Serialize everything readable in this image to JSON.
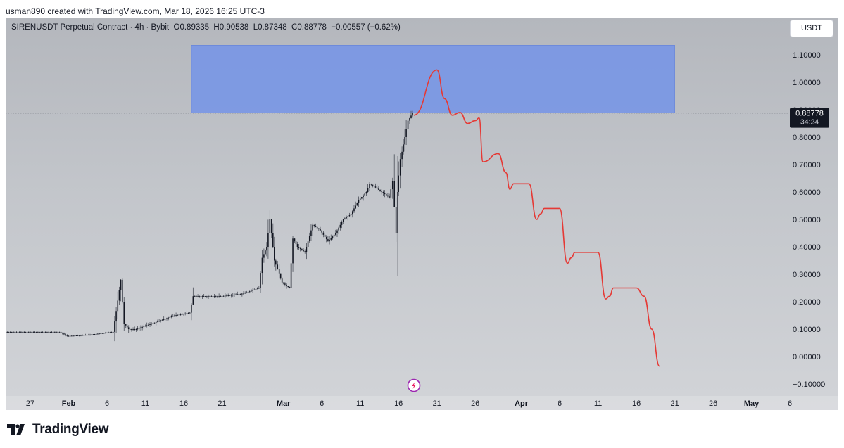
{
  "header": {
    "created_line": "usman890 created with TradingView.com, Mar 18, 2026 16:25 UTC-3"
  },
  "legend": {
    "symbol_line": "SIRENUSDT Perpetual Contract · 4h · Bybit",
    "open": "O0.89335",
    "high": "H0.90538",
    "low": "L0.87348",
    "close": "C0.88778",
    "change": "−0.00557 (−0.62%)"
  },
  "currency_button": "USDT",
  "last_price": {
    "value": "0.88778",
    "countdown": "34:24"
  },
  "footer": {
    "brand": "TradingView"
  },
  "colors": {
    "candles": "#131722",
    "zone": "#7896e6",
    "projection": "#e53935",
    "background_top": "#b4b7bd",
    "background_bottom": "#d2d4d8"
  },
  "event_icon": "lightning-bolt-icon",
  "chart_data": {
    "type": "line",
    "ylim": [
      -0.13,
      1.22
    ],
    "y_ticks": [
      1.1,
      1.0,
      0.9,
      0.8,
      0.7,
      0.6,
      0.5,
      0.4,
      0.3,
      0.2,
      0.1,
      0.0,
      -0.1
    ],
    "y_tick_labels": [
      "1.10000",
      "1.00000",
      "0.90000",
      "0.80000",
      "0.70000",
      "0.60000",
      "0.50000",
      "0.40000",
      "0.30000",
      "0.20000",
      "0.10000",
      "0.00000",
      "−0.10000"
    ],
    "x_ticks": [
      {
        "date": "2026-01-27",
        "label": "27",
        "bold": false
      },
      {
        "date": "2026-02-01",
        "label": "Feb",
        "bold": true
      },
      {
        "date": "2026-02-06",
        "label": "6",
        "bold": false
      },
      {
        "date": "2026-02-11",
        "label": "11",
        "bold": false
      },
      {
        "date": "2026-02-16",
        "label": "16",
        "bold": false
      },
      {
        "date": "2026-02-21",
        "label": "21",
        "bold": false
      },
      {
        "date": "2026-03-01",
        "label": "Mar",
        "bold": true
      },
      {
        "date": "2026-03-06",
        "label": "6",
        "bold": false
      },
      {
        "date": "2026-03-11",
        "label": "11",
        "bold": false
      },
      {
        "date": "2026-03-16",
        "label": "16",
        "bold": false
      },
      {
        "date": "2026-03-21",
        "label": "21",
        "bold": false
      },
      {
        "date": "2026-03-26",
        "label": "26",
        "bold": false
      },
      {
        "date": "2026-04-01",
        "label": "Apr",
        "bold": true
      },
      {
        "date": "2026-04-06",
        "label": "6",
        "bold": false
      },
      {
        "date": "2026-04-11",
        "label": "11",
        "bold": false
      },
      {
        "date": "2026-04-16",
        "label": "16",
        "bold": false
      },
      {
        "date": "2026-04-21",
        "label": "21",
        "bold": false
      },
      {
        "date": "2026-04-26",
        "label": "26",
        "bold": false
      },
      {
        "date": "2026-05-01",
        "label": "May",
        "bold": true
      },
      {
        "date": "2026-05-06",
        "label": "6",
        "bold": false
      }
    ],
    "series": [
      {
        "kind": "price",
        "x": [
          "2026-01-24",
          "2026-01-28",
          "2026-01-31",
          "2026-02-01",
          "2026-02-04",
          "2026-02-07",
          "2026-02-08",
          "2026-02-08",
          "2026-02-09",
          "2026-02-10",
          "2026-02-11",
          "2026-02-13",
          "2026-02-15",
          "2026-02-17",
          "2026-02-17",
          "2026-02-20",
          "2026-02-21",
          "2026-02-24",
          "2026-02-26",
          "2026-02-26",
          "2026-02-27",
          "2026-02-27",
          "2026-02-28",
          "2026-02-28",
          "2026-03-01",
          "2026-03-02",
          "2026-03-02",
          "2026-03-03",
          "2026-03-04",
          "2026-03-05",
          "2026-03-06",
          "2026-03-07",
          "2026-03-08",
          "2026-03-09",
          "2026-03-10",
          "2026-03-11",
          "2026-03-12",
          "2026-03-12",
          "2026-03-13",
          "2026-03-14",
          "2026-03-15",
          "2026-03-15",
          "2026-03-15",
          "2026-03-16",
          "2026-03-16",
          "2026-03-17",
          "2026-03-17",
          "2026-03-18"
        ],
        "y": [
          0.09,
          0.09,
          0.09,
          0.075,
          0.08,
          0.09,
          0.28,
          0.12,
          0.1,
          0.1,
          0.11,
          0.13,
          0.15,
          0.16,
          0.22,
          0.22,
          0.22,
          0.23,
          0.25,
          0.36,
          0.4,
          0.5,
          0.35,
          0.32,
          0.27,
          0.25,
          0.43,
          0.4,
          0.38,
          0.48,
          0.46,
          0.42,
          0.45,
          0.5,
          0.52,
          0.57,
          0.6,
          0.63,
          0.62,
          0.6,
          0.58,
          0.64,
          0.45,
          0.6,
          0.72,
          0.8,
          0.86,
          0.888
        ]
      },
      {
        "kind": "projection",
        "x": [
          "2026-03-18",
          "2026-03-21",
          "2026-03-22",
          "2026-03-23",
          "2026-03-24",
          "2026-03-25",
          "2026-03-26",
          "2026-03-26",
          "2026-03-27",
          "2026-03-29",
          "2026-03-30",
          "2026-03-30",
          "2026-03-31",
          "2026-04-02",
          "2026-04-03",
          "2026-04-03",
          "2026-04-04",
          "2026-04-06",
          "2026-04-07",
          "2026-04-07",
          "2026-04-08",
          "2026-04-11",
          "2026-04-12",
          "2026-04-12",
          "2026-04-13",
          "2026-04-16",
          "2026-04-17",
          "2026-04-18",
          "2026-04-19"
        ],
        "y": [
          0.88,
          1.045,
          0.94,
          0.88,
          0.89,
          0.85,
          0.86,
          0.87,
          0.71,
          0.74,
          0.67,
          0.61,
          0.63,
          0.63,
          0.5,
          0.52,
          0.54,
          0.54,
          0.34,
          0.36,
          0.38,
          0.38,
          0.21,
          0.22,
          0.25,
          0.25,
          0.22,
          0.1,
          -0.035
        ]
      }
    ],
    "zone": {
      "x_start": "2026-02-17",
      "x_end": "2026-04-21",
      "y_low": 0.888,
      "y_high": 1.135
    },
    "grid": false,
    "legend": "top-left"
  }
}
